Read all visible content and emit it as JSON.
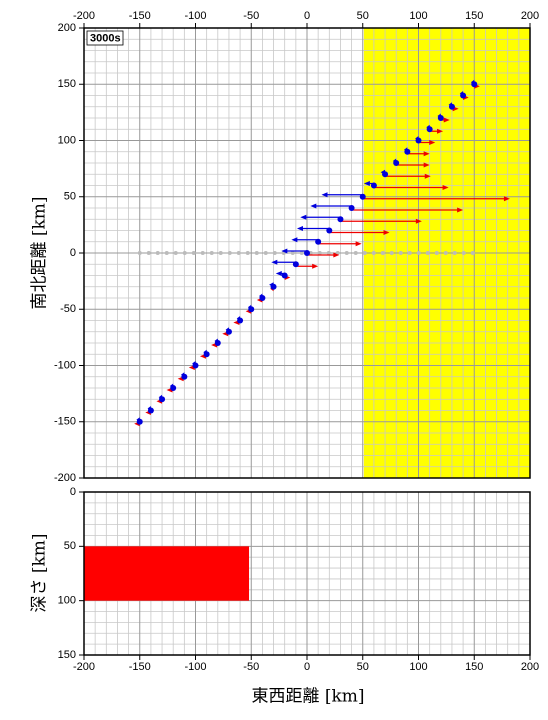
{
  "chart_data": [
    {
      "type": "quiver",
      "label": "3000s",
      "ylabel": "南北距離 [km]",
      "xlim": [
        -200,
        200
      ],
      "ylim": [
        -200,
        200
      ],
      "xticks": [
        -200,
        -150,
        -100,
        -50,
        0,
        50,
        100,
        150,
        200
      ],
      "yticks": [
        -200,
        -150,
        -100,
        -50,
        0,
        50,
        100,
        150,
        200
      ],
      "xminorticks": [
        -190,
        -180,
        -170,
        -160,
        -140,
        -130,
        -120,
        -110,
        -90,
        -80,
        -70,
        -60,
        -40,
        -30,
        -20,
        -10,
        10,
        20,
        30,
        40,
        60,
        70,
        80,
        90,
        110,
        120,
        130,
        140,
        160,
        170,
        180,
        190
      ],
      "yminorticks": [
        -190,
        -180,
        -170,
        -160,
        -140,
        -130,
        -120,
        -110,
        -90,
        -80,
        -70,
        -60,
        -40,
        -30,
        -20,
        -10,
        10,
        20,
        30,
        40,
        60,
        70,
        80,
        90,
        110,
        120,
        130,
        140,
        160,
        170,
        180,
        190
      ],
      "highlight": {
        "xlim": [
          51,
          200
        ],
        "color": "#ffff00"
      },
      "reference_line": {
        "y": 0,
        "xlim": [
          -150,
          150
        ],
        "color": "#bbbbbb"
      },
      "points": {
        "color": "#0000dd",
        "x": [
          -150,
          -140,
          -130,
          -120,
          -110,
          -100,
          -90,
          -80,
          -70,
          -60,
          -50,
          -40,
          -30,
          -20,
          -10,
          0,
          10,
          20,
          30,
          40,
          50,
          60,
          70,
          80,
          90,
          100,
          110,
          120,
          130,
          140,
          150
        ],
        "y": [
          -150,
          -140,
          -130,
          -120,
          -110,
          -100,
          -90,
          -80,
          -70,
          -60,
          -50,
          -40,
          -30,
          -20,
          -10,
          0,
          10,
          20,
          30,
          40,
          50,
          60,
          70,
          80,
          90,
          100,
          110,
          120,
          130,
          140,
          150
        ]
      },
      "series": [
        {
          "color": "#ee0000",
          "values": [
            -5,
            -5,
            -5,
            -6,
            -6,
            -6,
            -6,
            -6,
            -6,
            -6,
            -5,
            -5,
            -3,
            5,
            20,
            29,
            39,
            54,
            73,
            100,
            132,
            67,
            41,
            30,
            20,
            15,
            12,
            8,
            6,
            5,
            5
          ]
        },
        {
          "color": "#0000dd",
          "values": [
            -3,
            -3,
            -3,
            -3,
            -3,
            -3,
            -3,
            -3,
            -3,
            -3,
            -3,
            -3,
            -4,
            -8,
            -22,
            -23,
            -24,
            -29,
            -36,
            -37,
            -37,
            -9,
            -4,
            -3,
            -3,
            -3,
            -3,
            -3,
            -3,
            -3,
            -3
          ]
        }
      ]
    },
    {
      "type": "section",
      "xlabel": "東西距離 [km]",
      "ylabel": "深さ [km]",
      "xlim": [
        -200,
        200
      ],
      "ylim": [
        0,
        150
      ],
      "xticks": [
        -200,
        -150,
        -100,
        -50,
        0,
        50,
        100,
        150,
        200
      ],
      "yticks": [
        0,
        50,
        100,
        150
      ],
      "xminorticks": [
        -190,
        -180,
        -170,
        -160,
        -140,
        -130,
        -120,
        -110,
        -90,
        -80,
        -70,
        -60,
        -40,
        -30,
        -20,
        -10,
        10,
        20,
        30,
        40,
        60,
        70,
        80,
        90,
        110,
        120,
        130,
        140,
        160,
        170,
        180,
        190
      ],
      "yminorticks": [
        10,
        20,
        30,
        40,
        60,
        70,
        80,
        90,
        110,
        120,
        130,
        140
      ],
      "fault": {
        "x": [
          -200,
          -52
        ],
        "depth": [
          50,
          100
        ],
        "color": "#ff0000"
      }
    }
  ]
}
